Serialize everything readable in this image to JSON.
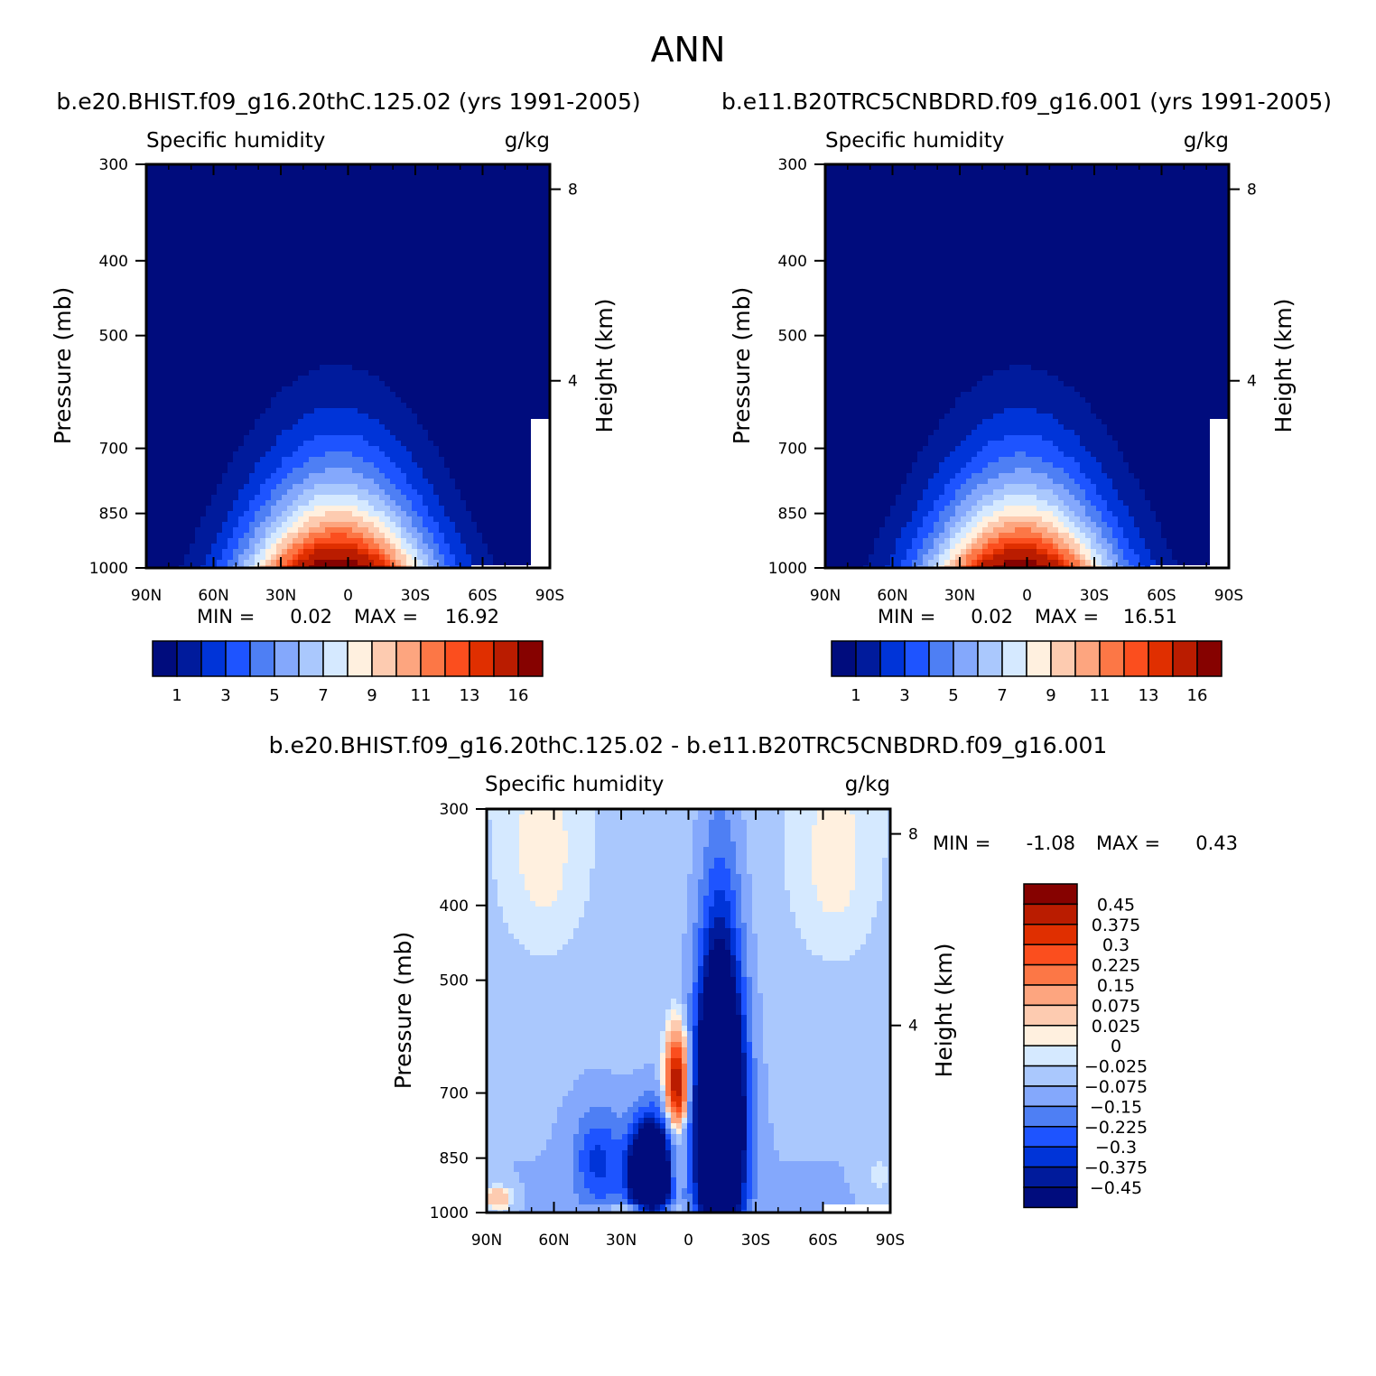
{
  "page": {
    "title": "ANN"
  },
  "chart_data": [
    {
      "type": "heatmap",
      "title": "b.e20.BHIST.f09_g16.20thC.125.02 (yrs 1991-2005)",
      "variable_label": "Specific humidity",
      "units": "g/kg",
      "xlabel": "",
      "ylabel": "Pressure (mb)",
      "y2label": "Height (km)",
      "x_ticks": [
        "90N",
        "60N",
        "30N",
        "0",
        "30S",
        "60S",
        "90S"
      ],
      "x_range": [
        90,
        -90
      ],
      "y_ticks": [
        300,
        400,
        500,
        700,
        850,
        1000
      ],
      "y_range": [
        1000,
        300
      ],
      "y_scale": "log",
      "y2_ticks": [
        8,
        4
      ],
      "min_label": "MIN =",
      "min": "0.02",
      "max_label": "MAX =",
      "max": "16.92",
      "colorbar": {
        "orientation": "horizontal",
        "tick_labels": [
          "1",
          "3",
          "5",
          "7",
          "9",
          "11",
          "13",
          "16"
        ],
        "colors": [
          "#000c7d",
          "#001b9c",
          "#0034d8",
          "#1e54ff",
          "#4e7ff4",
          "#84a8fc",
          "#aac8fd",
          "#d5e9ff",
          "#fff0df",
          "#fdcbb0",
          "#fda57f",
          "#fc7746",
          "#fb4e1e",
          "#e02f00",
          "#ba1c00",
          "#860200"
        ]
      },
      "field": {
        "qmax": 16.92,
        "peak_lat": 5,
        "surface_gap": "southern edge"
      }
    },
    {
      "type": "heatmap",
      "title": "b.e11.B20TRC5CNBDRD.f09_g16.001 (yrs 1991-2005)",
      "variable_label": "Specific humidity",
      "units": "g/kg",
      "xlabel": "",
      "ylabel": "Pressure (mb)",
      "y2label": "Height (km)",
      "x_ticks": [
        "90N",
        "60N",
        "30N",
        "0",
        "30S",
        "60S",
        "90S"
      ],
      "x_range": [
        90,
        -90
      ],
      "y_ticks": [
        300,
        400,
        500,
        700,
        850,
        1000
      ],
      "y_range": [
        1000,
        300
      ],
      "y_scale": "log",
      "y2_ticks": [
        8,
        4
      ],
      "min_label": "MIN =",
      "min": "0.02",
      "max_label": "MAX =",
      "max": "16.51",
      "colorbar": {
        "orientation": "horizontal",
        "tick_labels": [
          "1",
          "3",
          "5",
          "7",
          "9",
          "11",
          "13",
          "16"
        ],
        "colors": [
          "#000c7d",
          "#001b9c",
          "#0034d8",
          "#1e54ff",
          "#4e7ff4",
          "#84a8fc",
          "#aac8fd",
          "#d5e9ff",
          "#fff0df",
          "#fdcbb0",
          "#fda57f",
          "#fc7746",
          "#fb4e1e",
          "#e02f00",
          "#ba1c00",
          "#860200"
        ]
      },
      "field": {
        "qmax": 16.51,
        "peak_lat": 3,
        "surface_gap": "southern edge"
      }
    },
    {
      "type": "heatmap",
      "title": "b.e20.BHIST.f09_g16.20thC.125.02 - b.e11.B20TRC5CNBDRD.f09_g16.001",
      "variable_label": "Specific humidity",
      "units": "g/kg",
      "xlabel": "",
      "ylabel": "Pressure (mb)",
      "y2label": "Height (km)",
      "x_ticks": [
        "90N",
        "60N",
        "30N",
        "0",
        "30S",
        "60S",
        "90S"
      ],
      "x_range": [
        90,
        -90
      ],
      "y_ticks": [
        300,
        400,
        500,
        700,
        850,
        1000
      ],
      "y_range": [
        1000,
        300
      ],
      "y_scale": "log",
      "y2_ticks": [
        8,
        4
      ],
      "min_label": "MIN =",
      "min": "-1.08",
      "max_label": "MAX =",
      "max": "0.43",
      "colorbar": {
        "orientation": "vertical",
        "tick_labels": [
          "0.45",
          "0.375",
          "0.3",
          "0.225",
          "0.15",
          "0.075",
          "0.025",
          "0",
          "-0.025",
          "-0.075",
          "-0.15",
          "-0.225",
          "-0.3",
          "-0.375",
          "-0.45"
        ],
        "colors": [
          "#860200",
          "#ba1c00",
          "#e02f00",
          "#fb4e1e",
          "#fc7746",
          "#fda57f",
          "#fdcbb0",
          "#fff0df",
          "#d5e9ff",
          "#aac8fd",
          "#84a8fc",
          "#4e7ff4",
          "#1e54ff",
          "#0034d8",
          "#001b9c",
          "#000c7d"
        ]
      }
    }
  ]
}
